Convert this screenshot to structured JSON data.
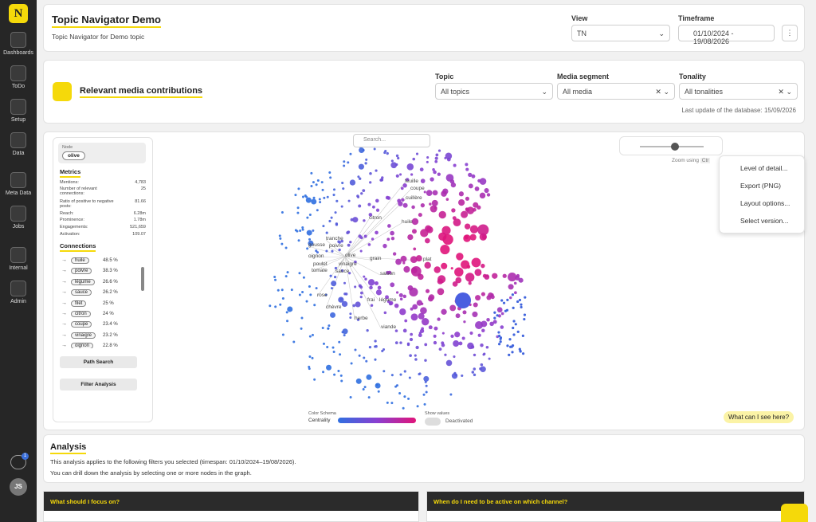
{
  "sidebar": {
    "logo": "N",
    "items": [
      "Dashboards",
      "ToDo",
      "Setup",
      "Data",
      "Meta Data",
      "Jobs",
      "Internal",
      "Admin"
    ],
    "notification_badge": "1",
    "avatar": "JS"
  },
  "header": {
    "title": "Topic Navigator Demo",
    "subtitle": "Topic Navigator for Demo topic",
    "view_label": "View",
    "view_value": "TN",
    "timeframe_label": "Timeframe",
    "timeframe_value": "01/10/2024 - 19/08/2026"
  },
  "filters": {
    "title": "Relevant media contributions",
    "topic_label": "Topic",
    "topic_value": "All topics",
    "media_label": "Media segment",
    "media_value": "All media",
    "tonality_label": "Tonality",
    "tonality_value": "All tonalities",
    "last_update": "Last update of the database: 15/09/2026"
  },
  "node_panel": {
    "node_label": "Node",
    "node": "olive",
    "metrics_title": "Metrics",
    "metrics": [
      [
        "Mentions:",
        "4,783"
      ],
      [
        "Number of relevant connections:",
        "25"
      ],
      [
        "Ratio of positive to negative posts:",
        "81.66"
      ],
      [
        "Reach:",
        "6.28m"
      ],
      [
        "Prominence:",
        "1.78m"
      ],
      [
        "Engagements:",
        "521,659"
      ],
      [
        "Activation:",
        "109.07"
      ]
    ],
    "connections_title": "Connections",
    "connections": [
      [
        "huile",
        "48.5 %"
      ],
      [
        "poivre",
        "38.3 %"
      ],
      [
        "légume",
        "26.6 %"
      ],
      [
        "sauce",
        "26.2 %"
      ],
      [
        "filet",
        "25 %"
      ],
      [
        "citron",
        "24 %"
      ],
      [
        "coupe",
        "23.4 %"
      ],
      [
        "vinaigre",
        "23.2 %"
      ],
      [
        "oignon",
        "22.8 %"
      ]
    ],
    "path_search": "Path Search",
    "filter_analysis": "Filter Analysis"
  },
  "graph": {
    "search_placeholder": "Search...",
    "zoom_hint": "Zoom using",
    "zoom_key": "Ctr",
    "menu": [
      "Level of detail...",
      "Export (PNG)",
      "Layout options...",
      "Select version..."
    ],
    "labels": [
      "feuille",
      "coupe",
      "cuillère",
      "citron",
      "huile",
      "tranche",
      "gousse",
      "poivre",
      "oignon",
      "olive",
      "grain",
      "plat",
      "poulet",
      "vinaigre",
      "tomate",
      "sauce",
      "saison",
      "rose",
      "frai",
      "légume",
      "chèvre",
      "herbe",
      "viande"
    ],
    "color_schema_label": "Color Schema",
    "centrality_label": "Centrality",
    "show_values_label": "Show values",
    "show_values_state": "Deactivated",
    "help": "What can I see here?"
  },
  "analysis": {
    "title": "Analysis",
    "lines": [
      "This analysis applies to the following filters you selected (timespan: 01/10/2024–19/08/2026).",
      "You can drill down the analysis by selecting one or more nodes in the graph."
    ]
  },
  "panels": [
    "What should I focus on?",
    "When do I need to be active on which channel?"
  ]
}
